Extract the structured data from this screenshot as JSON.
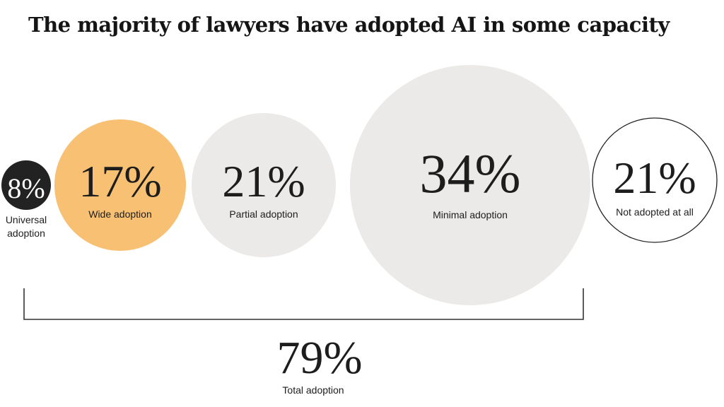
{
  "title": "The majority of lawyers  have adopted AI in some capacity",
  "colors": {
    "dark": "#222222",
    "accent": "#f8c073",
    "light": "#ebeae8",
    "outline": "#222222",
    "text": "#1d1d1d"
  },
  "chart_data": {
    "type": "bubble",
    "unit": "%",
    "categories": [
      "Universal adoption",
      "Wide adoption",
      "Partial adoption",
      "Minimal adoption",
      "Not adopted at all"
    ],
    "values": [
      8,
      17,
      21,
      34,
      21
    ],
    "value_labels": [
      "8%",
      "17%",
      "21%",
      "34%",
      "21%"
    ],
    "fills": [
      "dark",
      "accent",
      "light",
      "light",
      "outline"
    ],
    "bracket": {
      "spans": [
        "Universal adoption",
        "Wide adoption",
        "Partial adoption",
        "Minimal adoption"
      ],
      "value": 79,
      "value_label": "79%",
      "label": "Total adoption"
    }
  }
}
